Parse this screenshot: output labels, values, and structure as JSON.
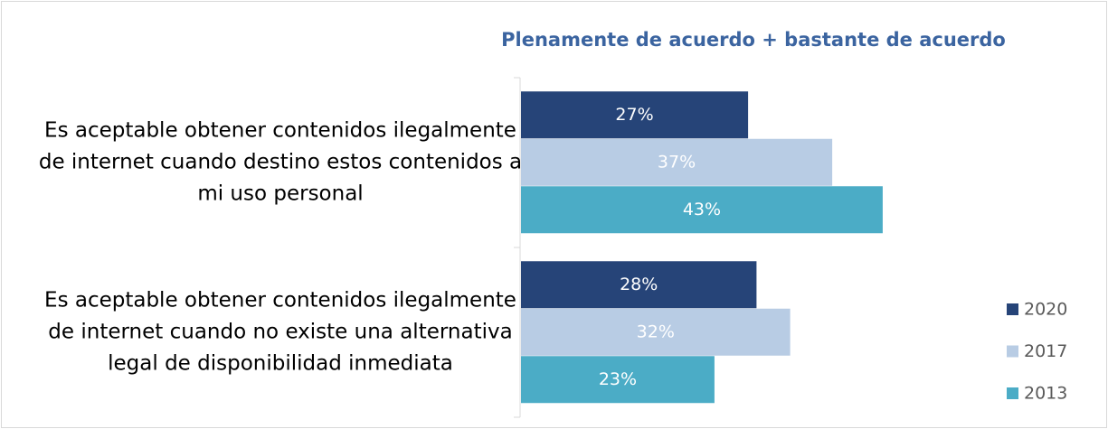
{
  "chart_data": {
    "type": "barh",
    "title": "Plenamente de acuerdo + bastante de acuerdo",
    "categories": [
      "Es aceptable obtener contenidos ilegalmente de internet cuando destino estos contenidos a mi uso personal",
      "Es aceptable obtener contenidos ilegalmente de internet cuando no existe una alternativa legal de disponibilidad inmediata"
    ],
    "series": [
      {
        "name": "2020",
        "color": "#264478",
        "values": [
          27,
          28
        ],
        "value_labels": [
          "27%",
          "28%"
        ]
      },
      {
        "name": "2017",
        "color": "#b8cce4",
        "values": [
          37,
          32
        ],
        "value_labels": [
          "37%",
          "32%"
        ]
      },
      {
        "name": "2013",
        "color": "#4bacc6",
        "values": [
          43,
          23
        ],
        "value_labels": [
          "43%",
          "23%"
        ]
      }
    ],
    "xlim": [
      0,
      60
    ],
    "legend": "right"
  }
}
